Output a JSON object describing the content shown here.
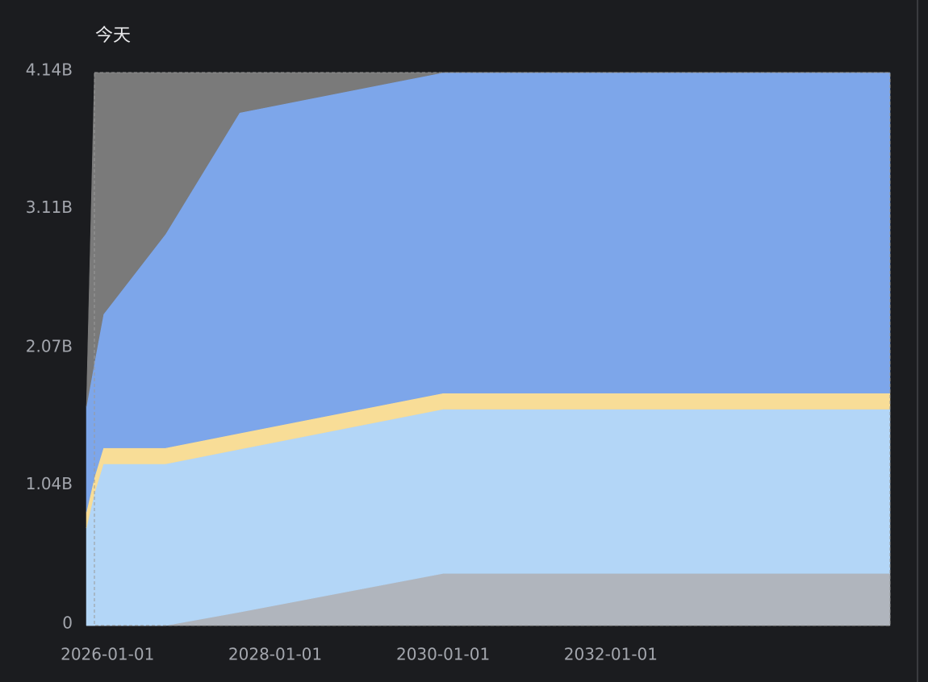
{
  "chart_data": {
    "type": "stacked-area",
    "title": "今天",
    "x": [
      "2025-10-01",
      "2025-11-05",
      "2025-12-14",
      "2026-09-10",
      "2027-07-30",
      "2030-01-01",
      "2035-05-01"
    ],
    "xlim": [
      "2025-11-05",
      "2035-05-01"
    ],
    "xticks": [
      "2026-01-01",
      "2028-01-01",
      "2030-01-01",
      "2032-01-01"
    ],
    "ylim": [
      0,
      4.14
    ],
    "yticks": [
      0,
      {
        "value": 1.04,
        "label": "1.04B"
      },
      {
        "value": 2.07,
        "label": "2.07B"
      },
      {
        "value": 3.11,
        "label": "3.11B"
      },
      {
        "value": 4.14,
        "label": "4.14B"
      }
    ],
    "series": [
      {
        "color": "#b0b5bd",
        "values": [
          0,
          0,
          0,
          0,
          0.1,
          0.39,
          0.39
        ]
      },
      {
        "color": "#b3d6f7",
        "values": [
          0.73,
          0.99,
          1.21,
          1.21,
          1.22,
          1.23,
          1.23
        ]
      },
      {
        "color": "#f8dd97",
        "values": [
          0.12,
          0.12,
          0.12,
          0.12,
          0.12,
          0.12,
          0.12
        ]
      },
      {
        "color": "#7da6ea",
        "values": [
          0.79,
          0.86,
          1.0,
          1.6,
          2.4,
          2.4,
          2.4
        ]
      },
      {
        "color": "#7a7a7a",
        "values": [
          0,
          2.17,
          1.81,
          1.21,
          0.3,
          0,
          0
        ]
      }
    ]
  }
}
